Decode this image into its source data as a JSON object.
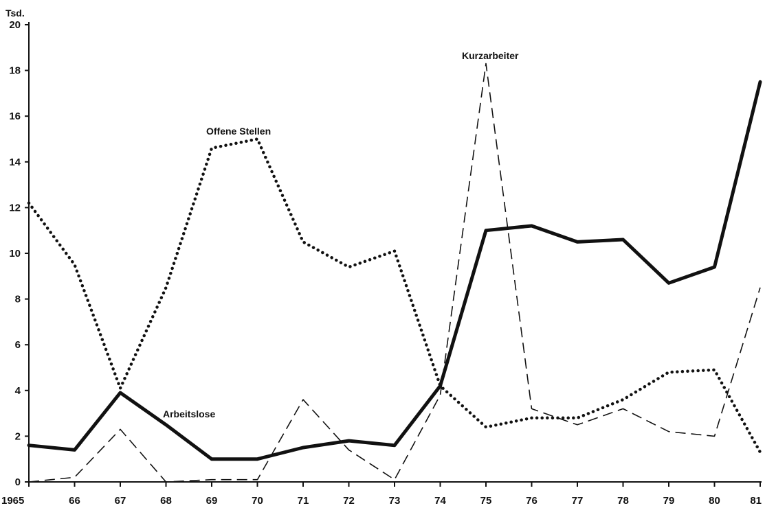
{
  "chart_data": {
    "type": "line",
    "ylabel": "Tsd.",
    "x": [
      "1965",
      "66",
      "67",
      "68",
      "69",
      "70",
      "71",
      "72",
      "73",
      "74",
      "75",
      "76",
      "77",
      "78",
      "79",
      "80",
      "81"
    ],
    "yticks": [
      0,
      2,
      4,
      6,
      8,
      10,
      12,
      14,
      16,
      18,
      20
    ],
    "ylim": [
      0,
      20
    ],
    "grid": false,
    "legend": "none",
    "series": [
      {
        "name": "Arbeitslose",
        "style": "solid-thick",
        "color": "#111111",
        "values": [
          1.6,
          1.4,
          3.9,
          2.5,
          1.0,
          1.0,
          1.5,
          1.8,
          1.6,
          4.2,
          11.0,
          11.2,
          10.5,
          10.6,
          8.7,
          9.4,
          17.5
        ]
      },
      {
        "name": "Offene Stellen",
        "style": "dotted",
        "color": "#111111",
        "values": [
          12.2,
          9.5,
          4.1,
          8.5,
          14.6,
          15.0,
          10.5,
          9.4,
          10.1,
          4.2,
          2.4,
          2.8,
          2.8,
          3.6,
          4.8,
          4.9,
          1.3
        ]
      },
      {
        "name": "Kurzarbeiter",
        "style": "dashed",
        "color": "#111111",
        "values": [
          0.0,
          0.2,
          2.3,
          0.0,
          0.1,
          0.1,
          3.6,
          1.4,
          0.1,
          3.8,
          18.3,
          3.2,
          2.5,
          3.2,
          2.2,
          2.0,
          8.5
        ]
      }
    ]
  }
}
